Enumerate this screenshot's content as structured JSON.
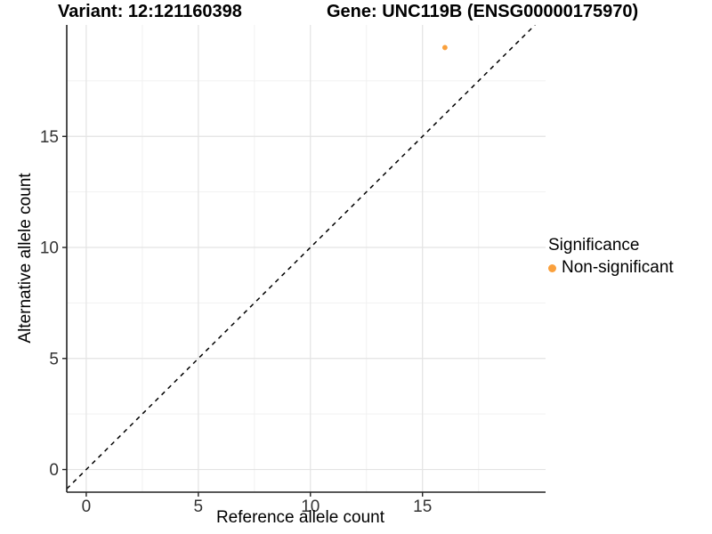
{
  "titles": {
    "variant": "Variant: 12:121160398",
    "gene": "Gene: UNC119B (ENSG00000175970)"
  },
  "axes": {
    "x_label": "Reference allele count",
    "y_label": "Alternative allele count"
  },
  "legend": {
    "title": "Significance",
    "items": [
      {
        "label": "Non-significant",
        "color": "#FAA03C"
      }
    ]
  },
  "chart_data": {
    "type": "scatter",
    "title": "Variant: 12:121160398 — Gene: UNC119B (ENSG00000175970)",
    "xlabel": "Reference allele count",
    "ylabel": "Alternative allele count",
    "xlim": [
      -0.87,
      20.49
    ],
    "ylim": [
      -1.02,
      20.02
    ],
    "x_ticks": [
      0,
      5,
      10,
      15
    ],
    "y_ticks": [
      0,
      5,
      10,
      15
    ],
    "x_minor_ticks": [
      2.5,
      7.5,
      12.5,
      17.5
    ],
    "y_minor_ticks": [
      2.5,
      7.5,
      12.5,
      17.5
    ],
    "grid": true,
    "legend_position": "right",
    "series": [
      {
        "name": "Non-significant",
        "color": "#FAA03C",
        "points": [
          {
            "x": 16,
            "y": 19
          }
        ]
      }
    ],
    "reference_line": {
      "type": "identity",
      "slope": 1,
      "intercept": 0,
      "style": "dashed",
      "color": "#000000"
    },
    "colors": {
      "background": "#ffffff",
      "major_grid": "#e3e3e3",
      "minor_grid": "#f1f1f1",
      "axis_line": "#222222",
      "tick_mark": "#222222",
      "tick_label": "#333333",
      "point": "#FAA03C"
    }
  }
}
